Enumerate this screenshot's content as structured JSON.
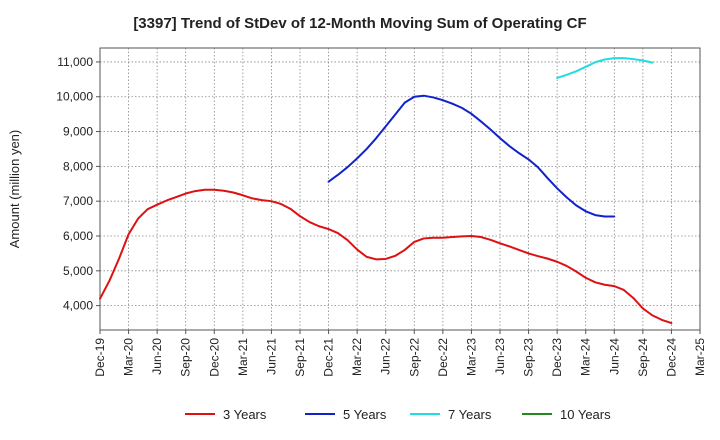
{
  "chart_data": {
    "type": "line",
    "title": "[3397]  Trend of StDev of 12-Month Moving Sum of Operating CF",
    "xlabel": "",
    "ylabel": "Amount (million yen)",
    "ylim": [
      3300,
      11400
    ],
    "yticks": [
      4000,
      5000,
      6000,
      7000,
      8000,
      9000,
      10000,
      11000
    ],
    "ytick_labels": [
      "4,000",
      "5,000",
      "6,000",
      "7,000",
      "8,000",
      "9,000",
      "10,000",
      "11,000"
    ],
    "x_categories": [
      "Dec-19",
      "Mar-20",
      "Jun-20",
      "Sep-20",
      "Dec-20",
      "Mar-21",
      "Jun-21",
      "Sep-21",
      "Dec-21",
      "Mar-22",
      "Jun-22",
      "Sep-22",
      "Dec-22",
      "Mar-23",
      "Jun-23",
      "Sep-23",
      "Dec-23",
      "Mar-24",
      "Jun-24",
      "Sep-24",
      "Dec-24",
      "Mar-25"
    ],
    "grid": true,
    "legend_position": "bottom",
    "series": [
      {
        "name": "3 Years",
        "color": "#dd1111",
        "start_index": 0,
        "values": [
          4200,
          4720,
          5350,
          6050,
          6500,
          6770,
          6900,
          7020,
          7120,
          7220,
          7290,
          7330,
          7330,
          7300,
          7250,
          7170,
          7080,
          7030,
          7000,
          6920,
          6780,
          6570,
          6400,
          6280,
          6200,
          6080,
          5880,
          5610,
          5400,
          5330,
          5340,
          5430,
          5600,
          5830,
          5930,
          5950,
          5950,
          5970,
          5990,
          6000,
          5970,
          5890,
          5790,
          5700,
          5600,
          5500,
          5420,
          5350,
          5260,
          5140,
          4980,
          4800,
          4670,
          4600,
          4560,
          4450,
          4220,
          3920,
          3720,
          3590,
          3500
        ]
      },
      {
        "name": "5 Years",
        "color": "#1122cc",
        "start_index": 24,
        "values": [
          7560,
          7760,
          7980,
          8230,
          8500,
          8810,
          9150,
          9490,
          9830,
          10000,
          10030,
          9980,
          9900,
          9800,
          9680,
          9510,
          9290,
          9060,
          8810,
          8580,
          8380,
          8200,
          7970,
          7660,
          7370,
          7110,
          6880,
          6710,
          6600,
          6560,
          6560
        ]
      },
      {
        "name": "7 Years",
        "color": "#22dddd",
        "start_index": 48,
        "values": [
          10540,
          10630,
          10730,
          10860,
          10990,
          11070,
          11110,
          11110,
          11080,
          11040,
          10980
        ]
      },
      {
        "name": "10 Years",
        "color": "#228822",
        "start_index": 0,
        "values": []
      }
    ]
  }
}
